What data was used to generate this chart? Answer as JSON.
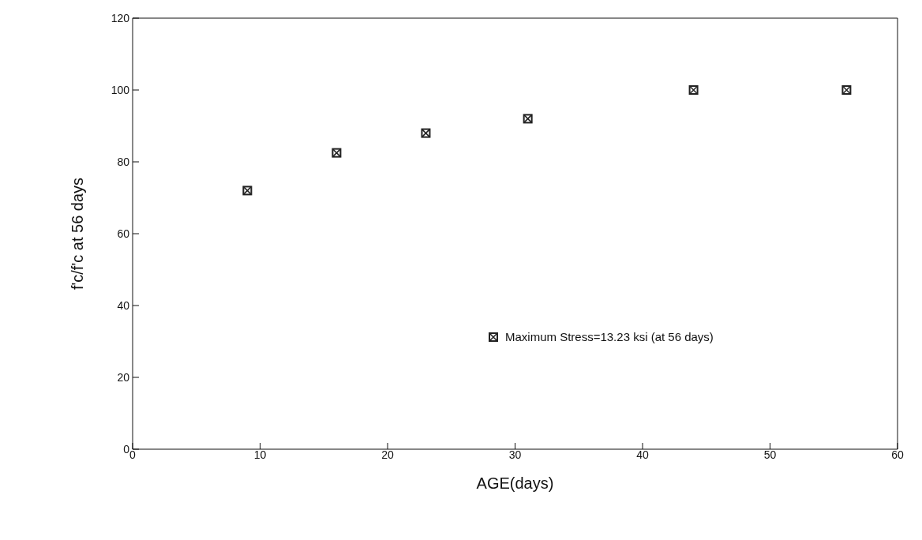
{
  "chart_data": {
    "type": "scatter",
    "xlabel": "AGE(days)",
    "ylabel": "f'c/f'c at 56 days",
    "x": [
      9,
      16,
      23,
      31,
      44,
      56
    ],
    "series": [
      {
        "name": "Maximum Stress=13.23 ksi (at 56 days)",
        "color": "#222222",
        "values": [
          72,
          82.5,
          88,
          92,
          100,
          100
        ]
      }
    ],
    "xlim": [
      0,
      60
    ],
    "xticks": [
      0,
      10,
      20,
      30,
      40,
      50,
      60
    ],
    "ylim": [
      0,
      120
    ],
    "yticks": [
      0,
      20,
      40,
      60,
      80,
      100,
      120
    ],
    "grid": false,
    "legend": "right",
    "marker": "square"
  }
}
